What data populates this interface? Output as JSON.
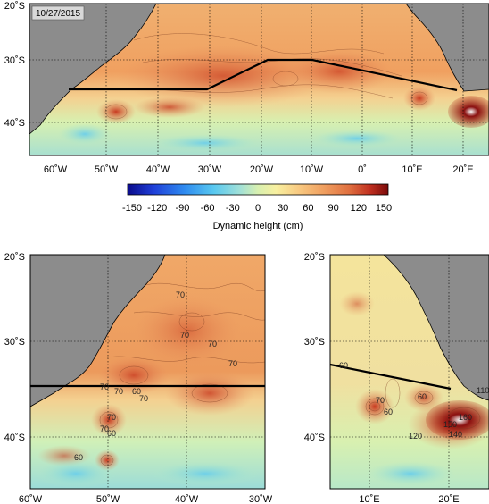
{
  "date": "10/27/2015",
  "colorbar": {
    "title": "Dynamic height (cm)",
    "ticks": [
      "-150",
      "-120",
      "-90",
      "-60",
      "-30",
      "0",
      "30",
      "60",
      "90",
      "120",
      "150"
    ],
    "colors": [
      "#0a0a8a",
      "#1f3fd8",
      "#2f8cf0",
      "#58c8f0",
      "#a0e0d8",
      "#d8f0b0",
      "#f8f0a0",
      "#f8c880",
      "#f0a060",
      "#e07040",
      "#c03020",
      "#7a0a0a"
    ]
  },
  "top_map": {
    "lat_labels": [
      "20˚S",
      "30˚S",
      "40˚S"
    ],
    "lon_labels": [
      "60˚W",
      "50˚W",
      "40˚W",
      "30˚W",
      "20˚W",
      "10˚W",
      "0˚",
      "10˚E",
      "20˚E"
    ]
  },
  "left_map": {
    "lat_labels": [
      "20˚S",
      "30˚S",
      "40˚S"
    ],
    "lon_labels": [
      "60˚W",
      "50˚W",
      "40˚W",
      "30˚W"
    ],
    "contour_labels": [
      "70",
      "70",
      "70",
      "70",
      "70",
      "60",
      "70",
      "70",
      "70",
      "60",
      "60",
      "70",
      "60",
      "60"
    ]
  },
  "right_map": {
    "lat_labels": [
      "20˚S",
      "30˚S",
      "40˚S"
    ],
    "lon_labels": [
      "10˚E",
      "20˚E"
    ],
    "contour_labels": [
      "60",
      "70",
      "60",
      "60",
      "120",
      "150",
      "160",
      "140",
      "110"
    ]
  }
}
